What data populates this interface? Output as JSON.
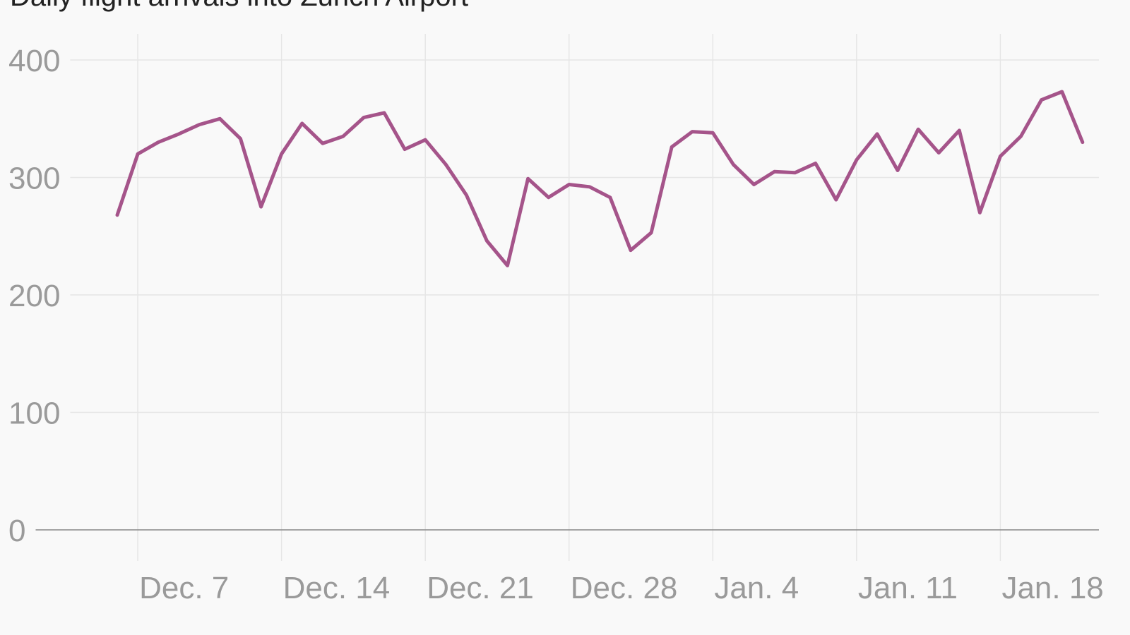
{
  "chart_data": {
    "type": "line",
    "title": "Daily flight arrivals into Zurich Airport",
    "categories": [
      null,
      "Dec. 7",
      null,
      null,
      null,
      null,
      null,
      null,
      "Dec. 14",
      null,
      null,
      null,
      null,
      null,
      null,
      "Dec. 21",
      null,
      null,
      null,
      null,
      null,
      null,
      "Dec. 28",
      null,
      null,
      null,
      null,
      null,
      null,
      "Jan. 4",
      null,
      null,
      null,
      null,
      null,
      null,
      "Jan. 11",
      null,
      null,
      null,
      null,
      null,
      null,
      "Jan. 18",
      null,
      null,
      null,
      null
    ],
    "values": [
      268,
      320,
      330,
      337,
      345,
      350,
      333,
      275,
      320,
      346,
      329,
      335,
      351,
      355,
      324,
      332,
      311,
      285,
      246,
      225,
      299,
      283,
      294,
      292,
      283,
      238,
      253,
      326,
      339,
      338,
      311,
      294,
      305,
      304,
      312,
      281,
      315,
      337,
      306,
      341,
      321,
      340,
      270,
      318,
      335,
      366,
      373,
      330
    ],
    "color": "#a5548a",
    "ylim": [
      0,
      400
    ],
    "yticks": [
      0,
      100,
      200,
      300,
      400
    ],
    "grid": true
  }
}
